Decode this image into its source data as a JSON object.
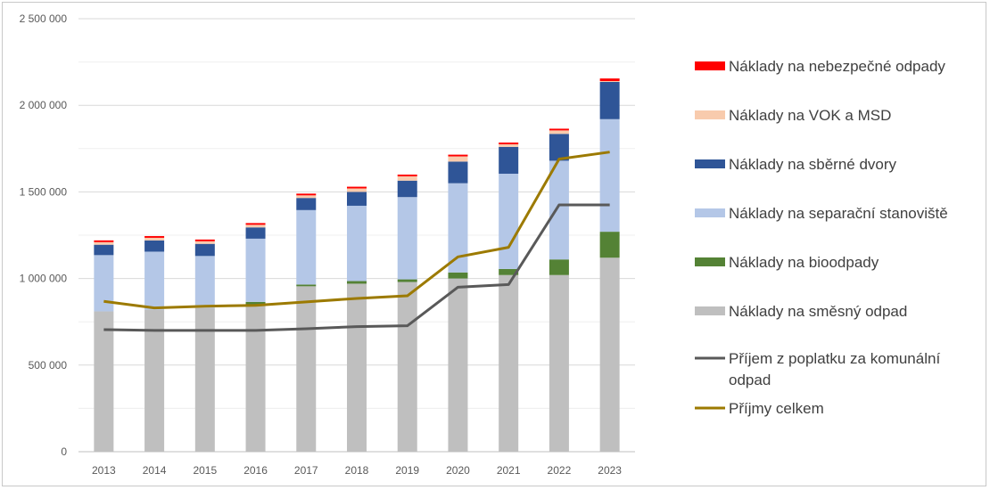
{
  "chart_data": {
    "type": "bar",
    "stacked": true,
    "categories": [
      "2013",
      "2014",
      "2015",
      "2016",
      "2017",
      "2018",
      "2019",
      "2020",
      "2021",
      "2022",
      "2023"
    ],
    "ylim": [
      0,
      2500000
    ],
    "yticks": [
      0,
      500000,
      1000000,
      1500000,
      2000000,
      2500000
    ],
    "ytick_labels": [
      "0",
      "500 000",
      "1 000 000",
      "1 500 000",
      "2 000 000",
      "2 500 000"
    ],
    "grid": true,
    "legend_position": "right",
    "bar_series": [
      {
        "name": "Náklady na směsný odpad",
        "color": "#bfbfbf",
        "values": [
          810000,
          820000,
          830000,
          850000,
          955000,
          970000,
          980000,
          1000000,
          1020000,
          1020000,
          1120000
        ]
      },
      {
        "name": "Náklady na bioodpady",
        "color": "#548235",
        "values": [
          0,
          0,
          0,
          15000,
          10000,
          15000,
          15000,
          35000,
          35000,
          90000,
          150000
        ]
      },
      {
        "name": "Náklady na separační stanoviště",
        "color": "#b4c7e7",
        "values": [
          325000,
          335000,
          300000,
          365000,
          430000,
          435000,
          475000,
          515000,
          550000,
          570000,
          650000
        ]
      },
      {
        "name": "Náklady na sběrné dvory",
        "color": "#2f5597",
        "values": [
          60000,
          65000,
          70000,
          65000,
          70000,
          80000,
          95000,
          125000,
          155000,
          155000,
          215000
        ]
      },
      {
        "name": "Náklady na VOK a MSD",
        "color": "#f8cbad",
        "values": [
          15000,
          15000,
          15000,
          15000,
          15000,
          20000,
          25000,
          30000,
          15000,
          20000,
          5000
        ]
      },
      {
        "name": "Náklady na nebezpečné odpady",
        "color": "#ff0000",
        "values": [
          10000,
          10000,
          10000,
          10000,
          10000,
          10000,
          10000,
          10000,
          10000,
          10000,
          15000
        ]
      }
    ],
    "line_series": [
      {
        "name": "Příjem z poplatku za komunální odpad",
        "color": "#595959",
        "values": [
          705000,
          700000,
          700000,
          700000,
          710000,
          722000,
          727000,
          950000,
          965000,
          1425000,
          1425000
        ]
      },
      {
        "name": "Příjmy celkem",
        "color": "#9c7a00",
        "values": [
          868000,
          830000,
          840000,
          845000,
          865000,
          885000,
          900000,
          1125000,
          1180000,
          1690000,
          1730000
        ]
      }
    ],
    "legend": [
      {
        "label": "Náklady na nebezpečné odpady",
        "kind": "bar",
        "color": "#ff0000"
      },
      {
        "label": "Náklady na VOK a MSD",
        "kind": "bar",
        "color": "#f8cbad"
      },
      {
        "label": "Náklady na sběrné dvory",
        "kind": "bar",
        "color": "#2f5597"
      },
      {
        "label": "Náklady na separační stanoviště",
        "kind": "bar",
        "color": "#b4c7e7"
      },
      {
        "label": "Náklady na bioodpady",
        "kind": "bar",
        "color": "#548235"
      },
      {
        "label": "Náklady na směsný odpad",
        "kind": "bar",
        "color": "#bfbfbf"
      },
      {
        "label": "Příjem z poplatku za komunální",
        "label2": "odpad",
        "kind": "line",
        "color": "#595959"
      },
      {
        "label": "Příjmy celkem",
        "kind": "line",
        "color": "#9c7a00"
      }
    ]
  }
}
